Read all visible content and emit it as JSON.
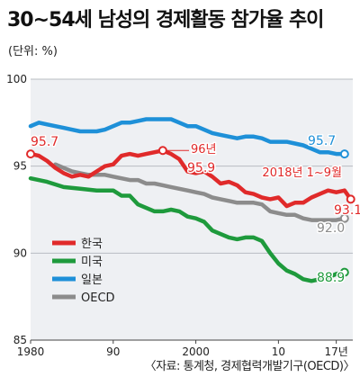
{
  "title": "30~54세 남성의 경제활동 참가율 추이",
  "unit": "(단위: %)",
  "source": "〈자료: 통계청, 경제협력개발기구(OECD)〉",
  "chart_data": {
    "type": "line",
    "ylim": [
      85,
      100
    ],
    "yticks": [
      "100",
      "95",
      "90",
      "85"
    ],
    "xlim": [
      1980,
      2019
    ],
    "xticks": [
      "1980",
      "90",
      "2000",
      "10",
      "17년"
    ],
    "grid": true,
    "legend_position": "left",
    "annotations": {
      "korea_1980": "95.7",
      "korea_1996_year": "96년",
      "korea_1996_value": "95.9",
      "korea_2018_period": "2018년 1~9월",
      "korea_end": "93.1",
      "usa_end": "88.9",
      "japan_end": "95.7",
      "oecd_end": "92.0"
    },
    "series": [
      {
        "name": "한국",
        "color": "#e02a2a",
        "points": [
          [
            1980,
            95.7
          ],
          [
            1981,
            95.6
          ],
          [
            1982,
            95.3
          ],
          [
            1983,
            94.9
          ],
          [
            1984,
            94.6
          ],
          [
            1985,
            94.4
          ],
          [
            1986,
            94.5
          ],
          [
            1987,
            94.4
          ],
          [
            1988,
            94.7
          ],
          [
            1989,
            95.0
          ],
          [
            1990,
            95.1
          ],
          [
            1991,
            95.6
          ],
          [
            1992,
            95.7
          ],
          [
            1993,
            95.6
          ],
          [
            1994,
            95.7
          ],
          [
            1995,
            95.8
          ],
          [
            1996,
            95.9
          ],
          [
            1997,
            95.7
          ],
          [
            1998,
            95.4
          ],
          [
            1999,
            94.7
          ],
          [
            2000,
            94.6
          ],
          [
            2001,
            94.7
          ],
          [
            2002,
            94.4
          ],
          [
            2003,
            94.0
          ],
          [
            2004,
            94.1
          ],
          [
            2005,
            93.9
          ],
          [
            2006,
            93.5
          ],
          [
            2007,
            93.4
          ],
          [
            2008,
            93.2
          ],
          [
            2009,
            93.1
          ],
          [
            2010,
            93.2
          ],
          [
            2011,
            92.7
          ],
          [
            2012,
            92.9
          ],
          [
            2013,
            92.9
          ],
          [
            2014,
            93.2
          ],
          [
            2015,
            93.4
          ],
          [
            2016,
            93.6
          ],
          [
            2017,
            93.5
          ],
          [
            2018,
            93.6
          ],
          [
            2018.75,
            93.1
          ]
        ]
      },
      {
        "name": "미국",
        "color": "#1e9a3c",
        "points": [
          [
            1980,
            94.3
          ],
          [
            1982,
            94.1
          ],
          [
            1984,
            93.8
          ],
          [
            1986,
            93.7
          ],
          [
            1988,
            93.6
          ],
          [
            1990,
            93.6
          ],
          [
            1991,
            93.3
          ],
          [
            1992,
            93.3
          ],
          [
            1993,
            92.8
          ],
          [
            1994,
            92.6
          ],
          [
            1995,
            92.4
          ],
          [
            1996,
            92.4
          ],
          [
            1997,
            92.5
          ],
          [
            1998,
            92.4
          ],
          [
            1999,
            92.1
          ],
          [
            2000,
            92.0
          ],
          [
            2001,
            91.8
          ],
          [
            2002,
            91.3
          ],
          [
            2003,
            91.1
          ],
          [
            2004,
            90.9
          ],
          [
            2005,
            90.8
          ],
          [
            2006,
            90.9
          ],
          [
            2007,
            90.9
          ],
          [
            2008,
            90.7
          ],
          [
            2009,
            90.0
          ],
          [
            2010,
            89.4
          ],
          [
            2011,
            89.0
          ],
          [
            2012,
            88.8
          ],
          [
            2013,
            88.5
          ],
          [
            2014,
            88.4
          ],
          [
            2015,
            88.5
          ],
          [
            2016,
            88.6
          ],
          [
            2017,
            88.8
          ],
          [
            2018,
            88.9
          ]
        ]
      },
      {
        "name": "일본",
        "color": "#1e90d8",
        "points": [
          [
            1980,
            97.3
          ],
          [
            1981,
            97.5
          ],
          [
            1982,
            97.4
          ],
          [
            1983,
            97.3
          ],
          [
            1984,
            97.2
          ],
          [
            1985,
            97.1
          ],
          [
            1986,
            97.0
          ],
          [
            1987,
            97.0
          ],
          [
            1988,
            97.0
          ],
          [
            1989,
            97.1
          ],
          [
            1990,
            97.3
          ],
          [
            1991,
            97.5
          ],
          [
            1992,
            97.5
          ],
          [
            1993,
            97.6
          ],
          [
            1994,
            97.7
          ],
          [
            1995,
            97.7
          ],
          [
            1996,
            97.7
          ],
          [
            1997,
            97.7
          ],
          [
            1998,
            97.5
          ],
          [
            1999,
            97.3
          ],
          [
            2000,
            97.3
          ],
          [
            2001,
            97.1
          ],
          [
            2002,
            96.9
          ],
          [
            2003,
            96.8
          ],
          [
            2004,
            96.7
          ],
          [
            2005,
            96.6
          ],
          [
            2006,
            96.7
          ],
          [
            2007,
            96.7
          ],
          [
            2008,
            96.6
          ],
          [
            2009,
            96.4
          ],
          [
            2010,
            96.4
          ],
          [
            2011,
            96.4
          ],
          [
            2012,
            96.3
          ],
          [
            2013,
            96.2
          ],
          [
            2014,
            96.0
          ],
          [
            2015,
            95.8
          ],
          [
            2016,
            95.8
          ],
          [
            2017,
            95.7
          ],
          [
            2018,
            95.7
          ]
        ]
      },
      {
        "name": "OECD",
        "color": "#8c8c8c",
        "points": [
          [
            1983,
            95.1
          ],
          [
            1984,
            94.9
          ],
          [
            1985,
            94.7
          ],
          [
            1986,
            94.6
          ],
          [
            1987,
            94.5
          ],
          [
            1988,
            94.5
          ],
          [
            1989,
            94.5
          ],
          [
            1990,
            94.4
          ],
          [
            1991,
            94.3
          ],
          [
            1992,
            94.2
          ],
          [
            1993,
            94.2
          ],
          [
            1994,
            94.0
          ],
          [
            1995,
            94.0
          ],
          [
            1996,
            93.9
          ],
          [
            1997,
            93.8
          ],
          [
            1998,
            93.7
          ],
          [
            1999,
            93.6
          ],
          [
            2000,
            93.5
          ],
          [
            2001,
            93.4
          ],
          [
            2002,
            93.2
          ],
          [
            2003,
            93.1
          ],
          [
            2004,
            93.0
          ],
          [
            2005,
            92.9
          ],
          [
            2006,
            92.9
          ],
          [
            2007,
            92.9
          ],
          [
            2008,
            92.8
          ],
          [
            2009,
            92.4
          ],
          [
            2010,
            92.3
          ],
          [
            2011,
            92.2
          ],
          [
            2012,
            92.2
          ],
          [
            2013,
            92.0
          ],
          [
            2014,
            91.9
          ],
          [
            2015,
            91.9
          ],
          [
            2016,
            91.9
          ],
          [
            2017,
            91.9
          ],
          [
            2018,
            92.0
          ]
        ]
      }
    ]
  }
}
